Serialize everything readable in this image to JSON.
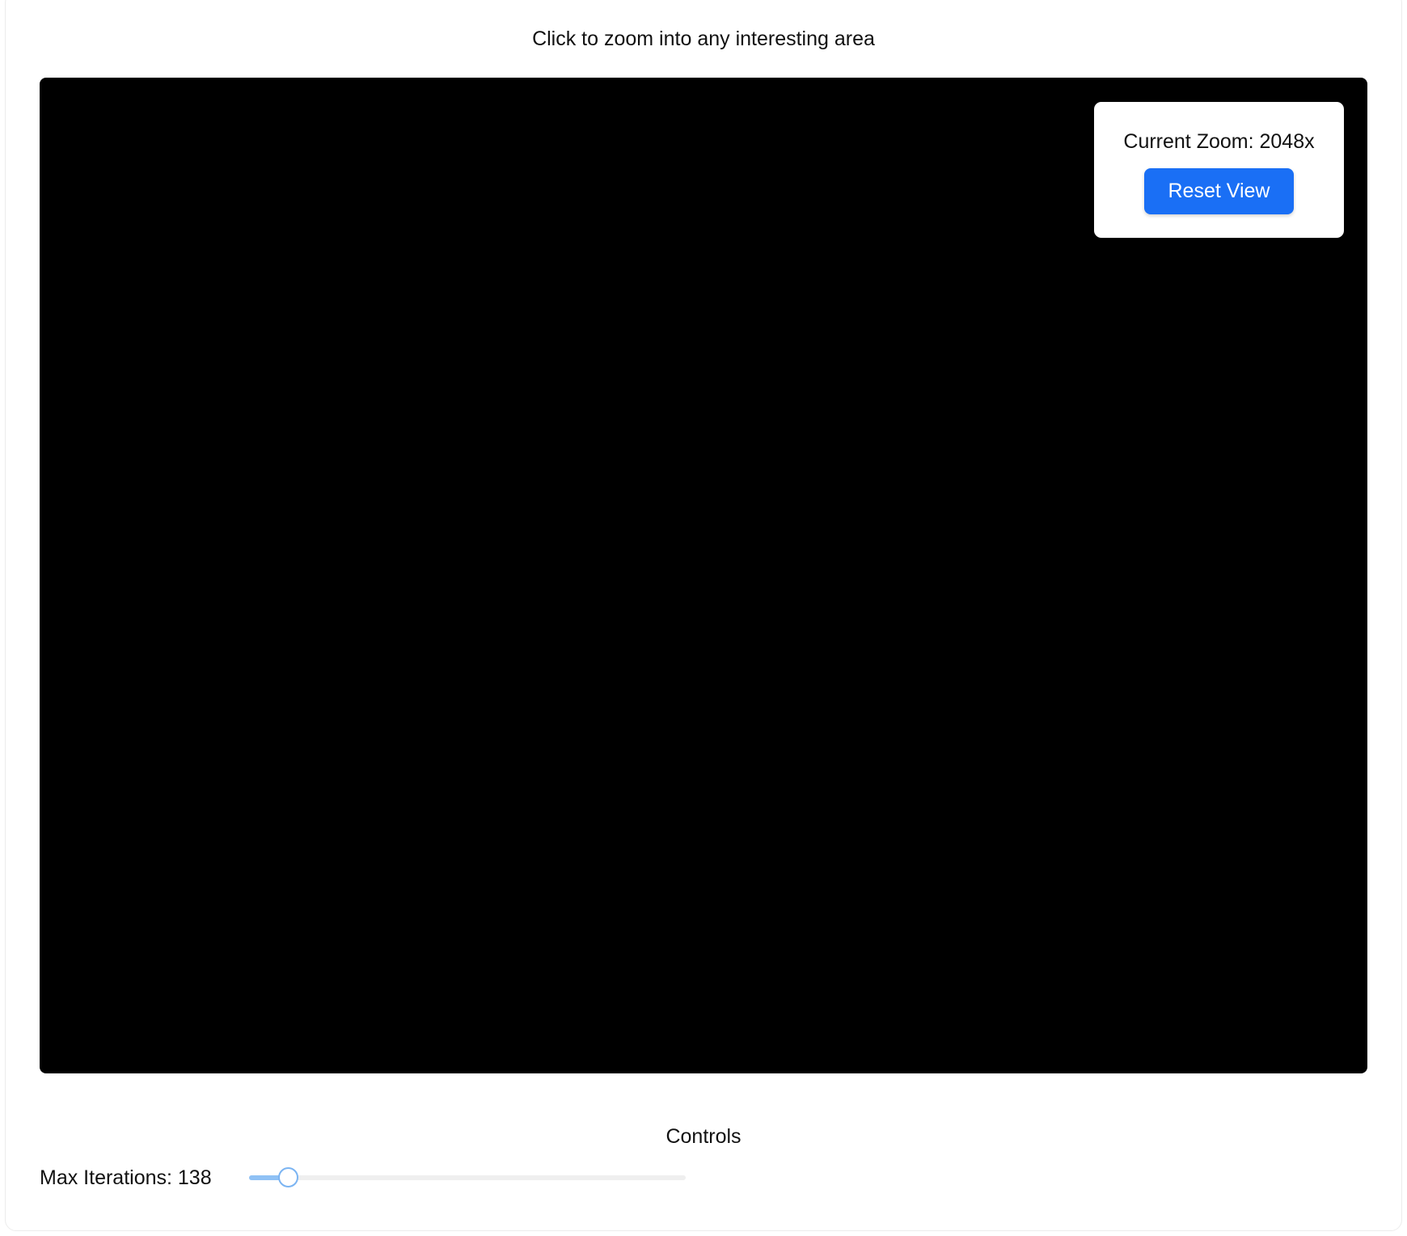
{
  "page": {
    "hint": "Click to zoom into any interesting area"
  },
  "zoom_panel": {
    "zoom_text": "Current Zoom: 2048x",
    "zoom_factor": 2048,
    "reset_label": "Reset View"
  },
  "controls": {
    "title": "Controls",
    "iterations_label": "Max Iterations: 138",
    "iterations_value": 138,
    "iterations_fraction": 0.09
  },
  "colors": {
    "accent_button": "#1a6ff5",
    "slider_accent": "#8fc1f5",
    "fractal_background": "#2a0acb",
    "fractal_mid": "#ef2a16",
    "fractal_high": "#ffd23a",
    "fractal_set": "#000000"
  }
}
